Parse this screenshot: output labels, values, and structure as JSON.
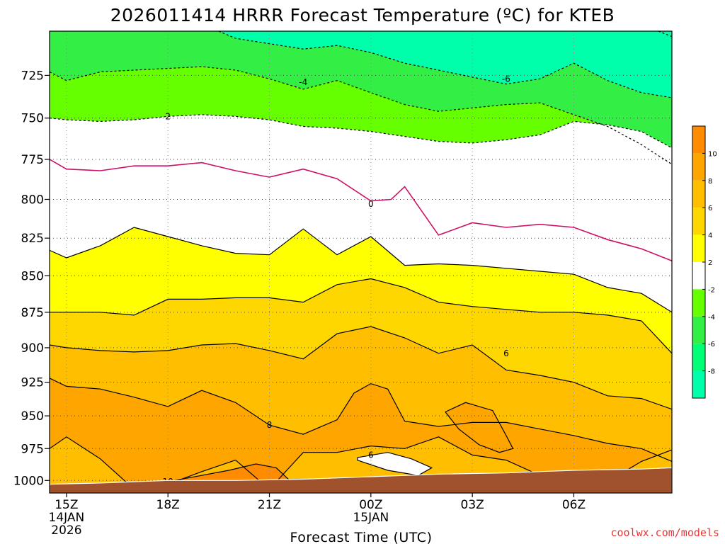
{
  "chart_data": {
    "type": "heatmap",
    "title": "2026011414 HRRR Forecast Temperature (ºC) for KTEB",
    "xlabel": "Forecast Time (UTC)",
    "ylabel": "",
    "y_scale": "pressure (log, inverted)",
    "ylim": [
      1010,
      700
    ],
    "xlim_hours": [
      14.5,
      32.9
    ],
    "y_ticks": [
      725,
      750,
      775,
      800,
      825,
      850,
      875,
      900,
      925,
      950,
      975,
      1000
    ],
    "x_ticks": [
      {
        "hour": 15,
        "label": "15Z",
        "date": "14JAN",
        "year": "2026"
      },
      {
        "hour": 18,
        "label": "18Z",
        "date": "",
        "year": ""
      },
      {
        "hour": 21,
        "label": "21Z",
        "date": "",
        "year": ""
      },
      {
        "hour": 24,
        "label": "00Z",
        "date": "15JAN",
        "year": ""
      },
      {
        "hour": 27,
        "label": "03Z",
        "date": "",
        "year": ""
      },
      {
        "hour": 30,
        "label": "06Z",
        "date": "",
        "year": ""
      }
    ],
    "grid": true,
    "colorbar": {
      "placement": "right",
      "bins": [
        {
          "range": "10 to 12",
          "color": "#ff8c00"
        },
        {
          "range": "8 to 10",
          "color": "#ffa500"
        },
        {
          "range": "6 to 8",
          "color": "#ffbf00"
        },
        {
          "range": "4 to 6",
          "color": "#ffd700"
        },
        {
          "range": "2 to 4",
          "color": "#ffff00"
        },
        {
          "range": "-2 to 2",
          "color": "#ffffff"
        },
        {
          "range": "-4 to -2",
          "color": "#66ff00"
        },
        {
          "range": "-6 to -4",
          "color": "#33ee44"
        },
        {
          "range": "-8 to -6",
          "color": "#00ff77"
        },
        {
          "range": "-10 to -8",
          "color": "#00ffaa"
        }
      ],
      "tick_labels": [
        "10",
        "8",
        "6",
        "4",
        "2",
        "-2",
        "-4",
        "-6",
        "-8"
      ]
    },
    "contours": [
      {
        "value": 2,
        "label": "2",
        "style": "dashed",
        "color": "#000000",
        "points": [
          [
            14.5,
            750
          ],
          [
            15,
            751
          ],
          [
            16,
            752
          ],
          [
            17,
            751
          ],
          [
            18,
            749
          ],
          [
            19,
            748
          ],
          [
            20,
            749
          ],
          [
            21,
            751
          ],
          [
            22,
            755
          ],
          [
            23,
            756
          ],
          [
            24,
            758
          ],
          [
            25,
            761
          ],
          [
            26,
            764
          ],
          [
            27,
            765
          ],
          [
            28,
            763
          ],
          [
            29,
            760
          ],
          [
            29.5,
            756
          ],
          [
            30,
            752
          ],
          [
            31,
            754
          ],
          [
            32,
            758
          ],
          [
            32.9,
            768
          ]
        ]
      },
      {
        "value": -4,
        "label": "-4",
        "style": "dashed",
        "color": "#000000",
        "points": [
          [
            14.5,
            723
          ],
          [
            15,
            728
          ],
          [
            16,
            723
          ],
          [
            17,
            722
          ],
          [
            18,
            721
          ],
          [
            19,
            720
          ],
          [
            20,
            722
          ],
          [
            21,
            727
          ],
          [
            22,
            733
          ],
          [
            23,
            728
          ],
          [
            24,
            735
          ],
          [
            25,
            742
          ],
          [
            26,
            746
          ],
          [
            27,
            744
          ],
          [
            28,
            742
          ],
          [
            29,
            741
          ],
          [
            30,
            748
          ],
          [
            31,
            755
          ],
          [
            32,
            766
          ],
          [
            32.9,
            778
          ]
        ]
      },
      {
        "value": -6,
        "label": "-6",
        "style": "dashed",
        "color": "#000000",
        "points": [
          [
            19.5,
            700
          ],
          [
            20,
            704
          ],
          [
            21,
            707
          ],
          [
            22,
            710
          ],
          [
            23,
            708
          ],
          [
            24,
            712
          ],
          [
            25,
            718
          ],
          [
            26,
            722
          ],
          [
            27,
            726
          ],
          [
            28,
            730
          ],
          [
            29,
            727
          ],
          [
            30,
            718
          ],
          [
            31,
            728
          ],
          [
            32,
            735
          ],
          [
            32.9,
            738
          ]
        ]
      },
      {
        "value": -8,
        "label": "",
        "style": "dashed",
        "color": "#000000",
        "points": [
          [
            32.5,
            700
          ],
          [
            32.9,
            703
          ]
        ]
      },
      {
        "value": 0,
        "label": "0",
        "style": "solid",
        "color": "#cc1166",
        "points": [
          [
            14.5,
            775
          ],
          [
            15,
            781
          ],
          [
            16,
            782
          ],
          [
            17,
            779
          ],
          [
            18,
            779
          ],
          [
            19,
            777
          ],
          [
            20,
            782
          ],
          [
            21,
            786
          ],
          [
            22,
            781
          ],
          [
            23,
            787
          ],
          [
            24,
            801
          ],
          [
            24.6,
            800
          ],
          [
            25,
            792
          ],
          [
            26,
            823
          ],
          [
            27,
            815
          ],
          [
            28,
            818
          ],
          [
            29,
            816
          ],
          [
            30,
            818
          ],
          [
            31,
            826
          ],
          [
            32,
            832
          ],
          [
            32.9,
            840
          ]
        ]
      },
      {
        "value": 2,
        "label": "",
        "style": "solid",
        "color": "#000000",
        "points": [
          [
            14.5,
            833
          ],
          [
            15,
            838
          ],
          [
            16,
            830
          ],
          [
            17,
            818
          ],
          [
            18,
            824
          ],
          [
            19,
            830
          ],
          [
            20,
            835
          ],
          [
            21,
            836
          ],
          [
            22,
            819
          ],
          [
            23,
            836
          ],
          [
            24,
            824
          ],
          [
            25,
            843
          ],
          [
            26,
            842
          ],
          [
            27,
            843
          ],
          [
            28,
            845
          ],
          [
            29,
            847
          ],
          [
            30,
            849
          ],
          [
            31,
            858
          ],
          [
            32,
            862
          ],
          [
            32.9,
            875
          ]
        ]
      },
      {
        "value": 4,
        "label": "",
        "style": "solid",
        "color": "#000000",
        "points": [
          [
            14.5,
            875
          ],
          [
            15,
            875
          ],
          [
            16,
            875
          ],
          [
            17,
            877
          ],
          [
            18,
            866
          ],
          [
            19,
            866
          ],
          [
            20,
            865
          ],
          [
            21,
            865
          ],
          [
            22,
            868
          ],
          [
            23,
            856
          ],
          [
            24,
            852
          ],
          [
            25,
            858
          ],
          [
            26,
            868
          ],
          [
            27,
            871
          ],
          [
            28,
            873
          ],
          [
            29,
            875
          ],
          [
            30,
            875
          ],
          [
            31,
            877
          ],
          [
            32,
            881
          ],
          [
            32.9,
            904
          ]
        ]
      },
      {
        "value": 6,
        "label": "6",
        "style": "solid",
        "color": "#000000",
        "points": [
          [
            14.5,
            898
          ],
          [
            15,
            900
          ],
          [
            16,
            902
          ],
          [
            17,
            903
          ],
          [
            18,
            902
          ],
          [
            19,
            898
          ],
          [
            20,
            897
          ],
          [
            21,
            902
          ],
          [
            22,
            908
          ],
          [
            23,
            890
          ],
          [
            24,
            885
          ],
          [
            25,
            893
          ],
          [
            26,
            904
          ],
          [
            27,
            898
          ],
          [
            28,
            916
          ],
          [
            29,
            920
          ],
          [
            30,
            925
          ],
          [
            31,
            935
          ],
          [
            32,
            937
          ],
          [
            32.9,
            945
          ]
        ]
      },
      {
        "value": 8,
        "label": "8",
        "style": "solid",
        "color": "#000000",
        "points": [
          [
            14.5,
            922
          ],
          [
            15,
            928
          ],
          [
            16,
            930
          ],
          [
            17,
            936
          ],
          [
            18,
            943
          ],
          [
            19,
            931
          ],
          [
            20,
            940
          ],
          [
            21,
            957
          ],
          [
            22,
            964
          ],
          [
            23,
            953
          ],
          [
            23.5,
            933
          ],
          [
            24,
            926
          ],
          [
            24.5,
            930
          ],
          [
            25,
            954
          ],
          [
            26,
            958
          ],
          [
            27,
            955
          ],
          [
            28,
            955
          ],
          [
            29,
            960
          ],
          [
            30,
            965
          ],
          [
            31,
            971
          ],
          [
            32,
            975
          ],
          [
            32.9,
            985
          ]
        ]
      },
      {
        "value": 8,
        "label": "",
        "style": "solid",
        "color": "#000000",
        "points": [
          [
            14.5,
            975
          ],
          [
            15,
            966
          ],
          [
            16,
            983
          ],
          [
            17,
            1007
          ],
          [
            18,
            1003
          ],
          [
            19,
            993
          ],
          [
            20,
            984
          ],
          [
            21,
            1007
          ],
          [
            22,
            978
          ],
          [
            23,
            978
          ],
          [
            24,
            973
          ],
          [
            25,
            975
          ],
          [
            26,
            966
          ],
          [
            27,
            980
          ],
          [
            28,
            984
          ],
          [
            29,
            996
          ],
          [
            30,
            1003
          ],
          [
            31,
            1001
          ],
          [
            32,
            985
          ],
          [
            32.9,
            976
          ]
        ]
      },
      {
        "value": 8,
        "label": "",
        "style": "closed",
        "color": "#000000",
        "points": [
          [
            26.2,
            947
          ],
          [
            26.8,
            940
          ],
          [
            27.6,
            946
          ],
          [
            28,
            965
          ],
          [
            28.2,
            975
          ],
          [
            27.8,
            978
          ],
          [
            27.2,
            972
          ],
          [
            26.6,
            960
          ],
          [
            26.2,
            947
          ]
        ]
      },
      {
        "value": 6,
        "label": "6",
        "style": "closed",
        "color": "#000000",
        "points": [
          [
            23.6,
            982
          ],
          [
            24.5,
            978
          ],
          [
            25.2,
            983
          ],
          [
            25.8,
            990
          ],
          [
            25.4,
            996
          ],
          [
            24.5,
            992
          ],
          [
            23.6,
            984
          ],
          [
            23.6,
            982
          ]
        ]
      },
      {
        "value": 10,
        "label": "10",
        "style": "closed",
        "color": "#000000",
        "points": [
          [
            17.6,
            1003
          ],
          [
            18.6,
            998
          ],
          [
            19.8,
            992
          ],
          [
            20.6,
            987
          ],
          [
            21.2,
            990
          ],
          [
            21.6,
            1000
          ],
          [
            20.4,
            1003
          ],
          [
            19,
            1004
          ],
          [
            17.6,
            1003
          ]
        ]
      }
    ],
    "fill_bands": [
      {
        "color": "#ff8c00",
        "points": [
          [
            17.6,
            1003
          ],
          [
            18.6,
            998
          ],
          [
            19.8,
            992
          ],
          [
            20.6,
            987
          ],
          [
            21.2,
            990
          ],
          [
            21.6,
            1000
          ],
          [
            20.4,
            1003
          ],
          [
            19,
            1004
          ],
          [
            17.6,
            1003
          ]
        ]
      },
      {
        "color": "#00ffaa",
        "points": [
          [
            19.5,
            700
          ],
          [
            20,
            704
          ],
          [
            21,
            707
          ],
          [
            22,
            710
          ],
          [
            23,
            708
          ],
          [
            24,
            712
          ],
          [
            25,
            718
          ],
          [
            26,
            722
          ],
          [
            27,
            726
          ],
          [
            28,
            730
          ],
          [
            29,
            727
          ],
          [
            30,
            718
          ],
          [
            31,
            728
          ],
          [
            32,
            735
          ],
          [
            32.9,
            738
          ],
          [
            32.9,
            700
          ]
        ]
      },
      {
        "color": "#ffffff",
        "points": [
          [
            23.6,
            982
          ],
          [
            24.5,
            978
          ],
          [
            25.2,
            983
          ],
          [
            25.8,
            990
          ],
          [
            25.4,
            996
          ],
          [
            24.5,
            992
          ],
          [
            23.6,
            984
          ],
          [
            23.6,
            982
          ]
        ]
      }
    ],
    "ground": {
      "color": "#a0522d",
      "surface_pressure": [
        [
          14.5,
          1003
        ],
        [
          16,
          1002
        ],
        [
          18,
          1000
        ],
        [
          20,
          1000
        ],
        [
          22,
          999
        ],
        [
          24,
          997
        ],
        [
          26,
          995
        ],
        [
          28,
          994
        ],
        [
          30,
          992
        ],
        [
          32,
          991
        ],
        [
          32.9,
          990
        ]
      ]
    },
    "colors": {
      "above_2C_base": "#ffff00",
      "between_2_and_4": "#ffff00",
      "between_4_and_6": "#ffd700",
      "between_6_and_8": "#ffbf00",
      "between_8_and_10": "#ffa500",
      "zero_line": "#cc1166",
      "grid": "#999999"
    }
  },
  "credit": "coolwx.com/models"
}
